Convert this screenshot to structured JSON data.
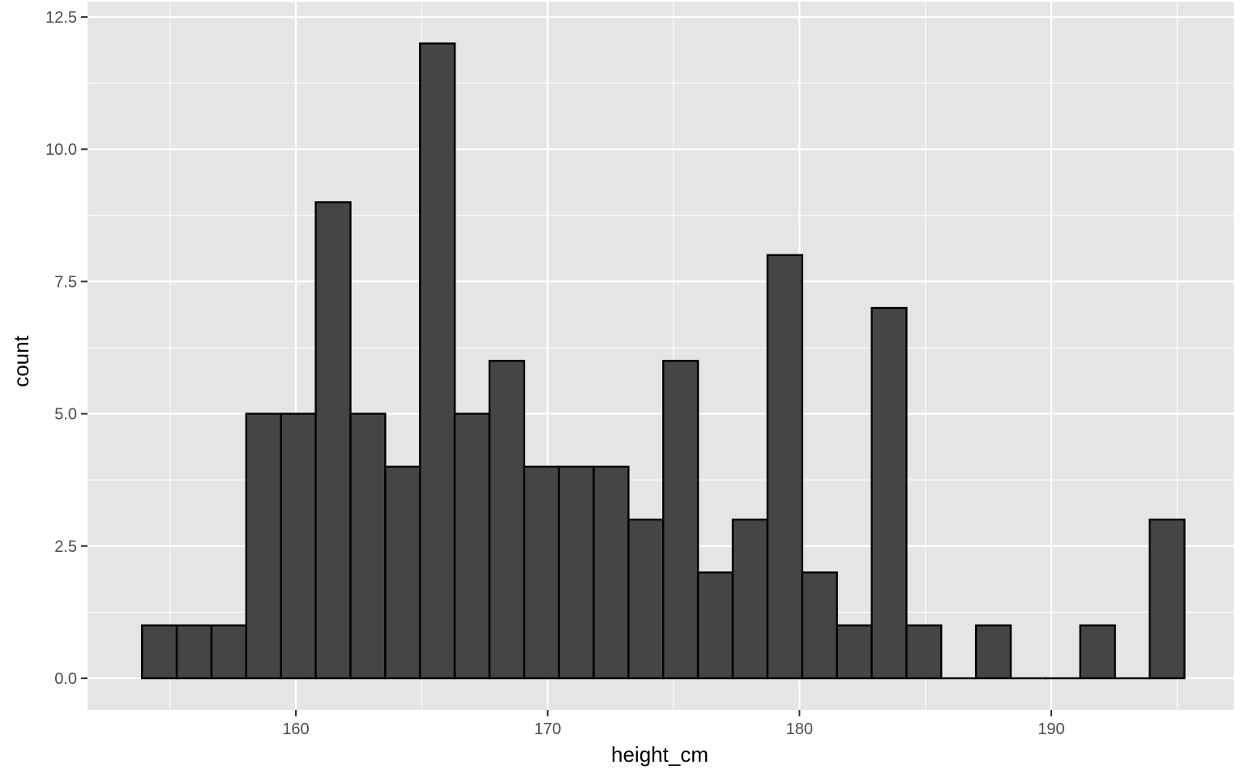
{
  "chart_data": {
    "type": "bar",
    "subtype": "histogram",
    "xlabel": "height_cm",
    "ylabel": "count",
    "xlim": [
      152.0,
      197.0
    ],
    "ylim": [
      -1.15,
      12.5
    ],
    "x_ticks": [
      160,
      170,
      180,
      190
    ],
    "x_tick_labels": [
      "160",
      "170",
      "180",
      "190"
    ],
    "y_ticks": [
      0,
      2.5,
      5,
      7.5,
      10,
      12.5
    ],
    "y_tick_labels": [
      "0.0",
      "2.5",
      "5.0",
      "7.5",
      "10.0",
      "12.5"
    ],
    "grid": true,
    "colors": {
      "panel": "#e5e5e5",
      "grid": "#ffffff",
      "bar_fill": "#454545",
      "bar_outline": "#000000",
      "tick_text": "#4d4d4d",
      "axis_title": "#000000"
    },
    "bins": [
      {
        "x0": 153.89,
        "x1": 155.27,
        "count": 1
      },
      {
        "x0": 155.27,
        "x1": 156.65,
        "count": 1
      },
      {
        "x0": 156.65,
        "x1": 158.03,
        "count": 1
      },
      {
        "x0": 158.03,
        "x1": 159.41,
        "count": 5
      },
      {
        "x0": 159.41,
        "x1": 160.79,
        "count": 5
      },
      {
        "x0": 160.79,
        "x1": 162.17,
        "count": 9
      },
      {
        "x0": 162.17,
        "x1": 163.55,
        "count": 5
      },
      {
        "x0": 163.55,
        "x1": 164.93,
        "count": 4
      },
      {
        "x0": 164.93,
        "x1": 166.31,
        "count": 12
      },
      {
        "x0": 166.31,
        "x1": 167.69,
        "count": 5
      },
      {
        "x0": 167.69,
        "x1": 169.07,
        "count": 6
      },
      {
        "x0": 169.07,
        "x1": 170.45,
        "count": 4
      },
      {
        "x0": 170.45,
        "x1": 171.83,
        "count": 4
      },
      {
        "x0": 171.83,
        "x1": 173.21,
        "count": 4
      },
      {
        "x0": 173.21,
        "x1": 174.59,
        "count": 3
      },
      {
        "x0": 174.59,
        "x1": 175.97,
        "count": 6
      },
      {
        "x0": 175.97,
        "x1": 177.35,
        "count": 2
      },
      {
        "x0": 177.35,
        "x1": 178.73,
        "count": 3
      },
      {
        "x0": 178.73,
        "x1": 180.11,
        "count": 8
      },
      {
        "x0": 180.11,
        "x1": 181.49,
        "count": 2
      },
      {
        "x0": 181.49,
        "x1": 182.87,
        "count": 1
      },
      {
        "x0": 182.87,
        "x1": 184.25,
        "count": 7
      },
      {
        "x0": 184.25,
        "x1": 185.63,
        "count": 1
      },
      {
        "x0": 185.63,
        "x1": 187.01,
        "count": 0
      },
      {
        "x0": 187.01,
        "x1": 188.39,
        "count": 1
      },
      {
        "x0": 188.39,
        "x1": 189.77,
        "count": 0
      },
      {
        "x0": 189.77,
        "x1": 191.15,
        "count": 0
      },
      {
        "x0": 191.15,
        "x1": 192.53,
        "count": 1
      },
      {
        "x0": 192.53,
        "x1": 193.91,
        "count": 0
      },
      {
        "x0": 193.91,
        "x1": 195.29,
        "count": 3
      }
    ]
  }
}
